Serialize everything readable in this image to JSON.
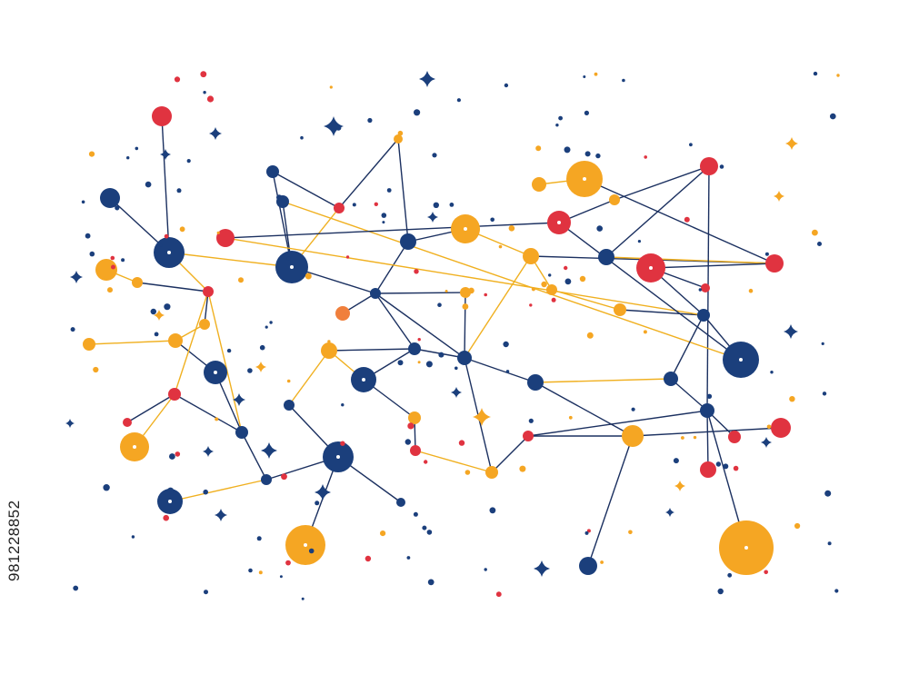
{
  "colors": {
    "navy": "#1b3f7c",
    "orange": "#f5a623",
    "red": "#e03340",
    "coral": "#f07f3c",
    "line_navy": "#1b3060",
    "line_orange": "#f0b020"
  },
  "watermark": {
    "stock_id": "981228852"
  },
  "icons": [
    "network-node",
    "sparkle-star"
  ]
}
